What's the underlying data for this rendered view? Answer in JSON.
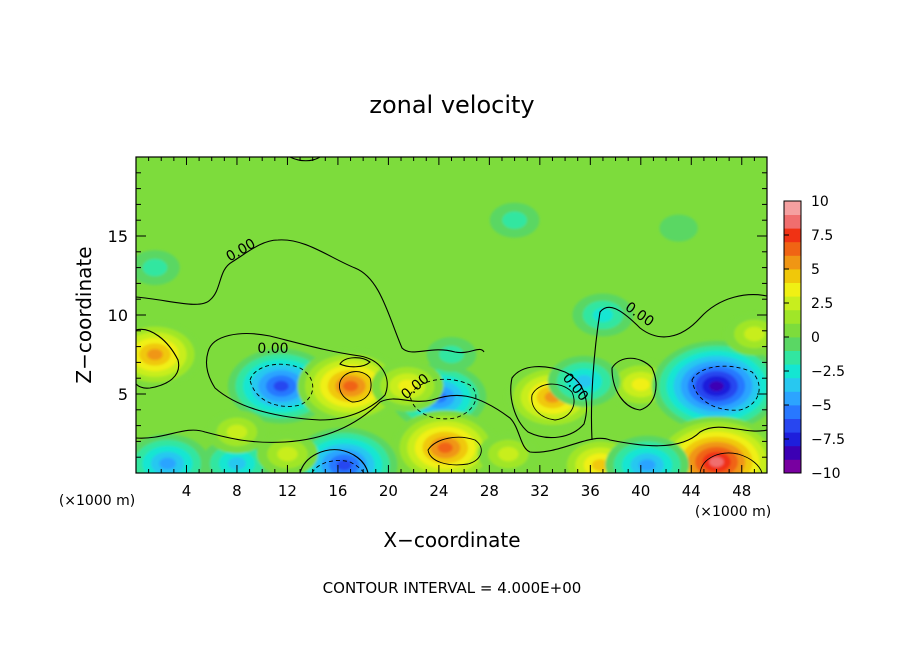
{
  "chart_data": {
    "type": "heatmap",
    "title": "zonal velocity",
    "xlabel": "X−coordinate",
    "ylabel": "Z−coordinate",
    "x_unit_left": "(×1000 m)",
    "x_unit_right": "(×1000 m)",
    "footer": "CONTOUR INTERVAL = 4.000E+00",
    "xlim": [
      0,
      50
    ],
    "ylim": [
      0,
      20
    ],
    "x_ticks": [
      4,
      8,
      12,
      16,
      20,
      24,
      28,
      32,
      36,
      40,
      44,
      48
    ],
    "y_ticks": [
      5,
      10,
      15
    ],
    "contour_labels": [
      "0.00",
      "0.00",
      "0.00",
      "0.00",
      "0.00"
    ],
    "colorbar": {
      "range": [
        -10,
        10
      ],
      "ticks": [
        "10",
        "7.5",
        "5",
        "2.5",
        "0",
        "−2.5",
        "−5",
        "−7.5",
        "−10"
      ]
    },
    "features": [
      {
        "x": 1.5,
        "z": 7.5,
        "value": 5.5
      },
      {
        "x": 11.5,
        "z": 5.5,
        "value": -6.5
      },
      {
        "x": 17.0,
        "z": 5.5,
        "value": 7
      },
      {
        "x": 24.0,
        "z": 4.8,
        "value": -5.5
      },
      {
        "x": 24.5,
        "z": 1.6,
        "value": 7
      },
      {
        "x": 33.0,
        "z": 4.8,
        "value": 6
      },
      {
        "x": 40.0,
        "z": 5.6,
        "value": 4
      },
      {
        "x": 46.0,
        "z": 5.5,
        "value": -8.5
      },
      {
        "x": 46.0,
        "z": 0.7,
        "value": 9
      },
      {
        "x": 16.5,
        "z": 0.5,
        "value": -7
      },
      {
        "x": 2.5,
        "z": 0.6,
        "value": -5
      },
      {
        "x": 8.0,
        "z": 0.6,
        "value": -4
      },
      {
        "x": 36.8,
        "z": 0.5,
        "value": 5
      },
      {
        "x": 40.5,
        "z": 0.5,
        "value": -4.5
      },
      {
        "x": 8.0,
        "z": 2.6,
        "value": 3
      },
      {
        "x": 12.0,
        "z": 1.2,
        "value": 3
      },
      {
        "x": 29.5,
        "z": 1.2,
        "value": 3
      },
      {
        "x": 49.0,
        "z": 8.8,
        "value": 3
      },
      {
        "x": 1.5,
        "z": 13.0,
        "value": -2
      },
      {
        "x": 43.0,
        "z": 15.5,
        "value": -1
      },
      {
        "x": 30.0,
        "z": 16.0,
        "value": -1.5
      },
      {
        "x": 37.0,
        "z": 10.0,
        "value": -2.5
      },
      {
        "x": 35.5,
        "z": 5.8,
        "value": -4
      },
      {
        "x": 21.5,
        "z": 5.5,
        "value": 4
      },
      {
        "x": 25.0,
        "z": 7.5,
        "value": -2
      }
    ]
  }
}
